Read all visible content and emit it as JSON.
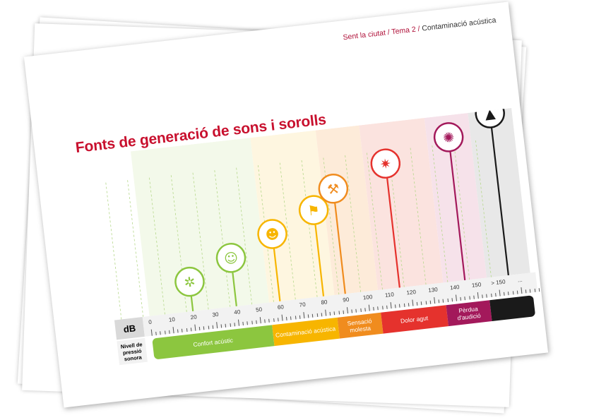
{
  "breadcrumb": {
    "part1": "Sent la ciutat",
    "separator": "/",
    "part2": "Tema 2",
    "part3": "Contaminació acústica"
  },
  "title": "Fonts de generació de sons i sorolls",
  "scale": {
    "axis_label": "dB",
    "row_label": "Nivell de pressió sonora",
    "ticks": [
      "0",
      "10",
      "20",
      "30",
      "40",
      "50",
      "60",
      "70",
      "80",
      "90",
      "100",
      "110",
      "120",
      "130",
      "140",
      "150",
      "> 150",
      "..."
    ]
  },
  "categories": [
    {
      "label": "Confort acústic",
      "from": 0,
      "to": 55,
      "color": "#8cc63f"
    },
    {
      "label": "Contaminació acústica",
      "from": 55,
      "to": 85,
      "color": "#f7b500"
    },
    {
      "label": "Sensació molesta",
      "from": 85,
      "to": 105,
      "color": "#f08c1e"
    },
    {
      "label": "Dolor agut",
      "from": 105,
      "to": 135,
      "color": "#e5322d"
    },
    {
      "label": "Pèrdua d'audició",
      "from": 135,
      "to": 155,
      "color": "#a3195b"
    },
    {
      "label": "",
      "from": 155,
      "to": 175,
      "color": "#1a1a1a"
    }
  ],
  "sources": [
    {
      "icon": "mosquito-icon",
      "db": 20,
      "level": 1,
      "color": "#8cc63f"
    },
    {
      "icon": "person-reading-icon",
      "db": 40,
      "level": 2,
      "color": "#8cc63f"
    },
    {
      "icon": "speaking-face-icon",
      "db": 60,
      "level": 3,
      "color": "#f7b500"
    },
    {
      "icon": "children-playing-icon",
      "db": 80,
      "level": 4,
      "color": "#f7b500"
    },
    {
      "icon": "drill-icon",
      "db": 90,
      "level": 5,
      "color": "#f08c1e"
    },
    {
      "icon": "firework-icon",
      "db": 115,
      "level": 6,
      "color": "#e5322d"
    },
    {
      "icon": "explosion-icon",
      "db": 145,
      "level": 7,
      "color": "#a3195b"
    },
    {
      "icon": "rocket-icon",
      "db": 165,
      "level": 8,
      "color": "#1a1a1a"
    }
  ]
}
